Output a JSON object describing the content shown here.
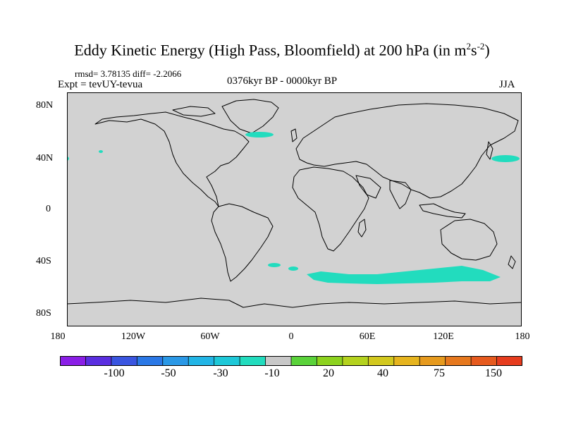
{
  "title": {
    "text": "Eddy Kinetic Energy (High Pass, Bloomfield) at 200 hPa (in m",
    "sup1": "2",
    "mid": "s",
    "sup2": "-2",
    "end": ")"
  },
  "stats": "rmsd= 3.78135 diff= -2.2066",
  "expt": "Expt = tevUY-tevua",
  "subtitle": "0376kyr BP - 0000kyr BP",
  "season": "JJA",
  "lat_ticks": [
    "80N",
    "40N",
    "0",
    "40S",
    "80S"
  ],
  "lon_ticks": [
    "180",
    "120W",
    "60W",
    "0",
    "60E",
    "120E",
    "180"
  ],
  "colorbar": {
    "colors": [
      "#8a1ee6",
      "#5a2ee0",
      "#3a55e0",
      "#2a78e6",
      "#2a98e6",
      "#22b5e6",
      "#1ec8d8",
      "#22dcbe",
      "#c8c8c8",
      "#5ad23a",
      "#8cd21e",
      "#b4d21e",
      "#d2c81e",
      "#e6b41e",
      "#e69a1e",
      "#e6781e",
      "#e65a1e",
      "#e63c1e"
    ],
    "labels": [
      "-100",
      "-50",
      "-30",
      "-10",
      "20",
      "40",
      "75",
      "150"
    ]
  },
  "map": {
    "land_fill": "#d2d2d2",
    "anomaly_color": "#22dcbe",
    "coastline_color": "#000000"
  }
}
